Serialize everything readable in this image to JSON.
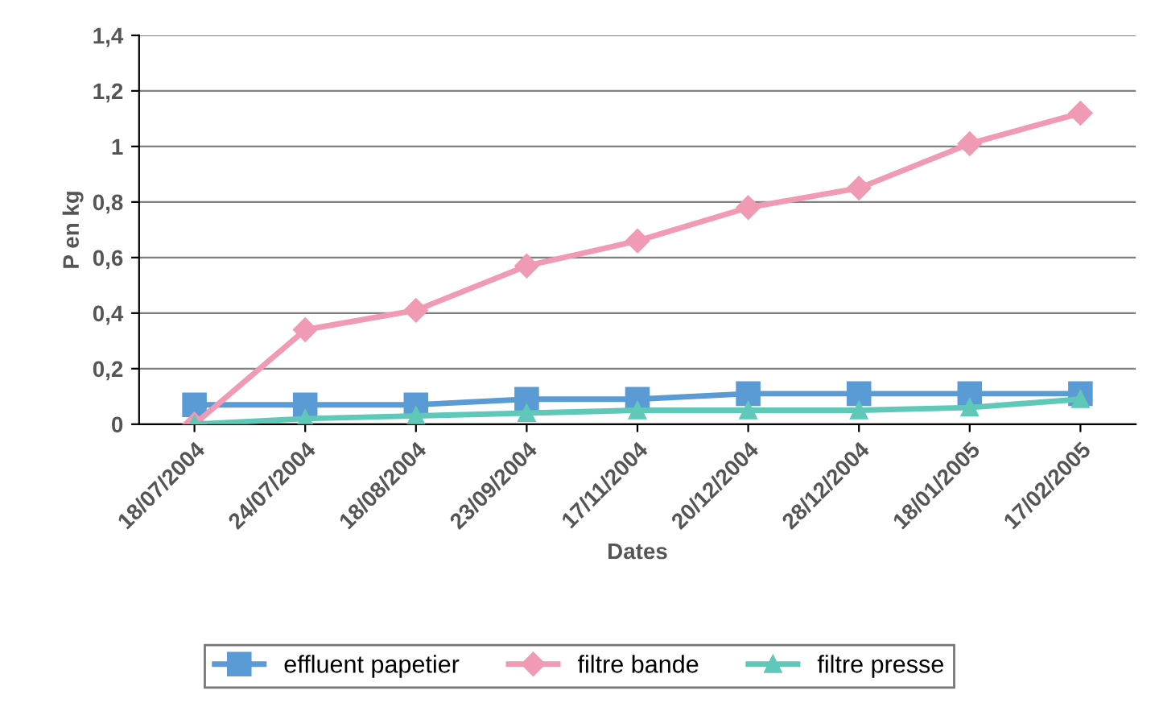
{
  "chart_data": {
    "type": "line",
    "xlabel": "Dates",
    "ylabel": "P en kg",
    "categories": [
      "18/07/2004",
      "24/07/2004",
      "18/08/2004",
      "23/09/2004",
      "17/11/2004",
      "20/12/2004",
      "28/12/2004",
      "18/01/2005",
      "17/02/2005"
    ],
    "series": [
      {
        "name": "effluent papetier",
        "color": "#5b9bd5",
        "marker": "square",
        "values": [
          0.07,
          0.07,
          0.07,
          0.09,
          0.09,
          0.11,
          0.11,
          0.11,
          0.11
        ]
      },
      {
        "name": "filtre bande",
        "color": "#f09ab4",
        "marker": "diamond",
        "values": [
          0,
          0.34,
          0.41,
          0.57,
          0.66,
          0.78,
          0.85,
          1.01,
          1.12
        ]
      },
      {
        "name": "filtre presse",
        "color": "#5fc8b8",
        "marker": "triangle",
        "values": [
          0,
          0.02,
          0.03,
          0.04,
          0.05,
          0.05,
          0.05,
          0.06,
          0.09
        ]
      }
    ],
    "ylim": [
      0,
      1.4
    ],
    "yticks": [
      0,
      {
        "value": 0.2,
        "label": "0,2"
      },
      {
        "value": 0.4,
        "label": "0,4"
      },
      {
        "value": 0.6,
        "label": "0,6"
      },
      {
        "value": 0.8,
        "label": "0,8"
      },
      1,
      {
        "value": 1.2,
        "label": "1,2"
      },
      {
        "value": 1.4,
        "label": "1,4"
      }
    ],
    "grid": "y",
    "legend": "bottom"
  }
}
